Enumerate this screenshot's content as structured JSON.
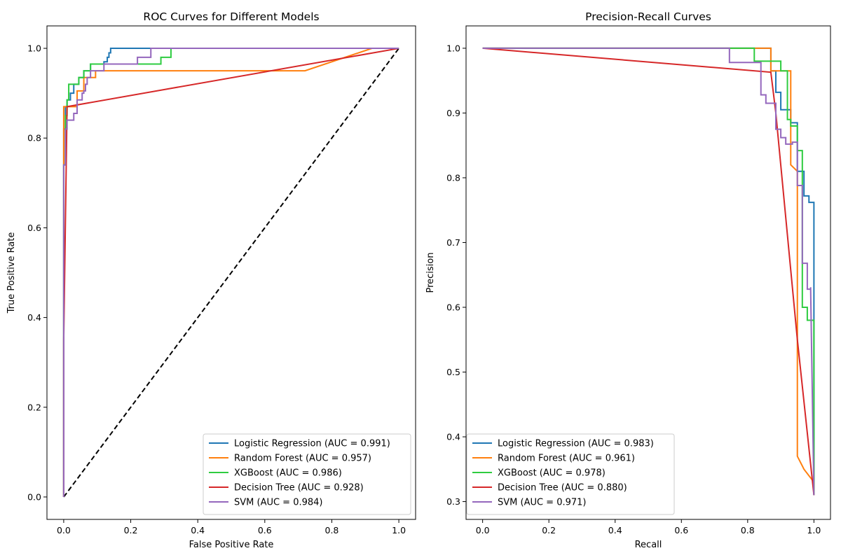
{
  "chart_data": [
    {
      "type": "line",
      "title": "ROC Curves for Different Models",
      "xlabel": "False Positive Rate",
      "ylabel": "True Positive Rate",
      "xlim": [
        -0.05,
        1.05
      ],
      "ylim": [
        -0.05,
        1.05
      ],
      "xticks": [
        "0.0",
        "0.2",
        "0.4",
        "0.6",
        "0.8",
        "1.0"
      ],
      "yticks": [
        "0.0",
        "0.2",
        "0.4",
        "0.6",
        "0.8",
        "1.0"
      ],
      "grid": false,
      "legend_position": "lower-right",
      "reference_line": {
        "x": [
          0,
          1
        ],
        "y": [
          0,
          1
        ],
        "style": "dashed",
        "color": "#000000"
      },
      "series": [
        {
          "name": "Logistic Regression (AUC = 0.991)",
          "color": "#1f77b4",
          "x": [
            0,
            0,
            0.005,
            0.005,
            0.01,
            0.01,
            0.02,
            0.02,
            0.03,
            0.03,
            0.045,
            0.045,
            0.06,
            0.06,
            0.08,
            0.08,
            0.12,
            0.12,
            0.13,
            0.13,
            0.135,
            0.135,
            0.14,
            0.14,
            0.26,
            0.26,
            1.0
          ],
          "y": [
            0,
            0.82,
            0.82,
            0.87,
            0.87,
            0.885,
            0.885,
            0.9,
            0.9,
            0.92,
            0.92,
            0.935,
            0.935,
            0.95,
            0.95,
            0.965,
            0.965,
            0.97,
            0.97,
            0.98,
            0.98,
            0.99,
            0.99,
            1.0,
            1.0,
            1.0,
            1.0
          ]
        },
        {
          "name": "Random Forest (AUC = 0.957)",
          "color": "#ff7f0e",
          "x": [
            0,
            0,
            0.04,
            0.04,
            0.06,
            0.06,
            0.095,
            0.095,
            0.72,
            0.92,
            1.0
          ],
          "y": [
            0,
            0.87,
            0.87,
            0.905,
            0.905,
            0.935,
            0.935,
            0.95,
            0.95,
            1.0,
            1.0
          ]
        },
        {
          "name": "XGBoost (AUC = 0.986)",
          "color": "#2ecc40",
          "x": [
            0,
            0,
            0.005,
            0.005,
            0.01,
            0.01,
            0.015,
            0.015,
            0.045,
            0.045,
            0.06,
            0.06,
            0.08,
            0.08,
            0.11,
            0.11,
            0.22,
            0.22,
            0.29,
            0.29,
            0.32,
            0.32,
            1.0
          ],
          "y": [
            0,
            0.74,
            0.74,
            0.85,
            0.85,
            0.885,
            0.885,
            0.92,
            0.92,
            0.935,
            0.935,
            0.95,
            0.95,
            0.965,
            0.965,
            0.965,
            0.965,
            0.965,
            0.965,
            0.98,
            0.98,
            1.0,
            1.0
          ]
        },
        {
          "name": "Decision Tree (AUC = 0.928)",
          "color": "#d62728",
          "x": [
            0,
            0.0,
            0.01,
            1.0
          ],
          "y": [
            0,
            0.35,
            0.87,
            1.0
          ]
        },
        {
          "name": "SVM (AUC = 0.984)",
          "color": "#9467bd",
          "x": [
            0,
            0,
            0.005,
            0.005,
            0.01,
            0.01,
            0.02,
            0.02,
            0.03,
            0.03,
            0.04,
            0.04,
            0.055,
            0.055,
            0.06,
            0.06,
            0.065,
            0.065,
            0.07,
            0.07,
            0.08,
            0.08,
            0.12,
            0.12,
            0.22,
            0.22,
            0.26,
            0.26,
            1.0
          ],
          "y": [
            0,
            0.74,
            0.74,
            0.82,
            0.82,
            0.84,
            0.84,
            0.84,
            0.84,
            0.855,
            0.855,
            0.885,
            0.885,
            0.9,
            0.9,
            0.905,
            0.905,
            0.92,
            0.92,
            0.935,
            0.935,
            0.95,
            0.95,
            0.965,
            0.965,
            0.98,
            0.98,
            1.0,
            1.0
          ]
        }
      ]
    },
    {
      "type": "line",
      "title": "Precision-Recall Curves",
      "xlabel": "Recall",
      "ylabel": "Precision",
      "xlim": [
        -0.05,
        1.05
      ],
      "ylim": [
        0.2725,
        1.0345
      ],
      "xticks": [
        "0.0",
        "0.2",
        "0.4",
        "0.6",
        "0.8",
        "1.0"
      ],
      "yticks": [
        "0.3",
        "0.4",
        "0.5",
        "0.6",
        "0.7",
        "0.8",
        "0.9",
        "1.0"
      ],
      "grid": false,
      "legend_position": "lower-left",
      "series": [
        {
          "name": "Logistic Regression (AUC = 0.983)",
          "color": "#1f77b4",
          "x": [
            0,
            0.87,
            0.87,
            0.885,
            0.885,
            0.9,
            0.9,
            0.93,
            0.93,
            0.95,
            0.95,
            0.97,
            0.97,
            0.985,
            0.985,
            1.0,
            1.0
          ],
          "y": [
            1.0,
            1.0,
            0.965,
            0.965,
            0.932,
            0.932,
            0.905,
            0.905,
            0.885,
            0.885,
            0.81,
            0.81,
            0.772,
            0.772,
            0.762,
            0.762,
            0.31
          ]
        },
        {
          "name": "Random Forest (AUC = 0.961)",
          "color": "#ff7f0e",
          "x": [
            0,
            0.87,
            0.87,
            0.93,
            0.93,
            0.95,
            0.95,
            0.97,
            1.0,
            1.0
          ],
          "y": [
            1.0,
            1.0,
            0.965,
            0.965,
            0.82,
            0.81,
            0.37,
            0.35,
            0.33,
            0.31
          ]
        },
        {
          "name": "XGBoost (AUC = 0.978)",
          "color": "#2ecc40",
          "x": [
            0,
            0.82,
            0.82,
            0.87,
            0.87,
            0.9,
            0.9,
            0.92,
            0.92,
            0.93,
            0.93,
            0.95,
            0.95,
            0.965,
            0.965,
            0.98,
            0.98,
            1.0,
            1.0
          ],
          "y": [
            1.0,
            1.0,
            0.98,
            0.98,
            0.98,
            0.98,
            0.965,
            0.965,
            0.89,
            0.89,
            0.88,
            0.88,
            0.842,
            0.842,
            0.6,
            0.6,
            0.58,
            0.58,
            0.31
          ]
        },
        {
          "name": "Decision Tree (AUC = 0.880)",
          "color": "#d62728",
          "x": [
            0,
            0.87,
            0.885,
            0.95,
            1.0
          ],
          "y": [
            1.0,
            0.963,
            0.9,
            0.55,
            0.31
          ]
        },
        {
          "name": "SVM (AUC = 0.971)",
          "color": "#9467bd",
          "x": [
            0,
            0.745,
            0.745,
            0.84,
            0.84,
            0.855,
            0.855,
            0.875,
            0.885,
            0.885,
            0.9,
            0.9,
            0.915,
            0.915,
            0.935,
            0.935,
            0.95,
            0.95,
            0.965,
            0.965,
            0.98,
            0.98,
            0.99,
            0.99,
            1.0
          ],
          "y": [
            1.0,
            1.0,
            0.978,
            0.978,
            0.928,
            0.928,
            0.915,
            0.915,
            0.915,
            0.875,
            0.875,
            0.862,
            0.862,
            0.852,
            0.852,
            0.855,
            0.855,
            0.788,
            0.788,
            0.668,
            0.668,
            0.628,
            0.628,
            0.631,
            0.31
          ]
        }
      ]
    }
  ]
}
